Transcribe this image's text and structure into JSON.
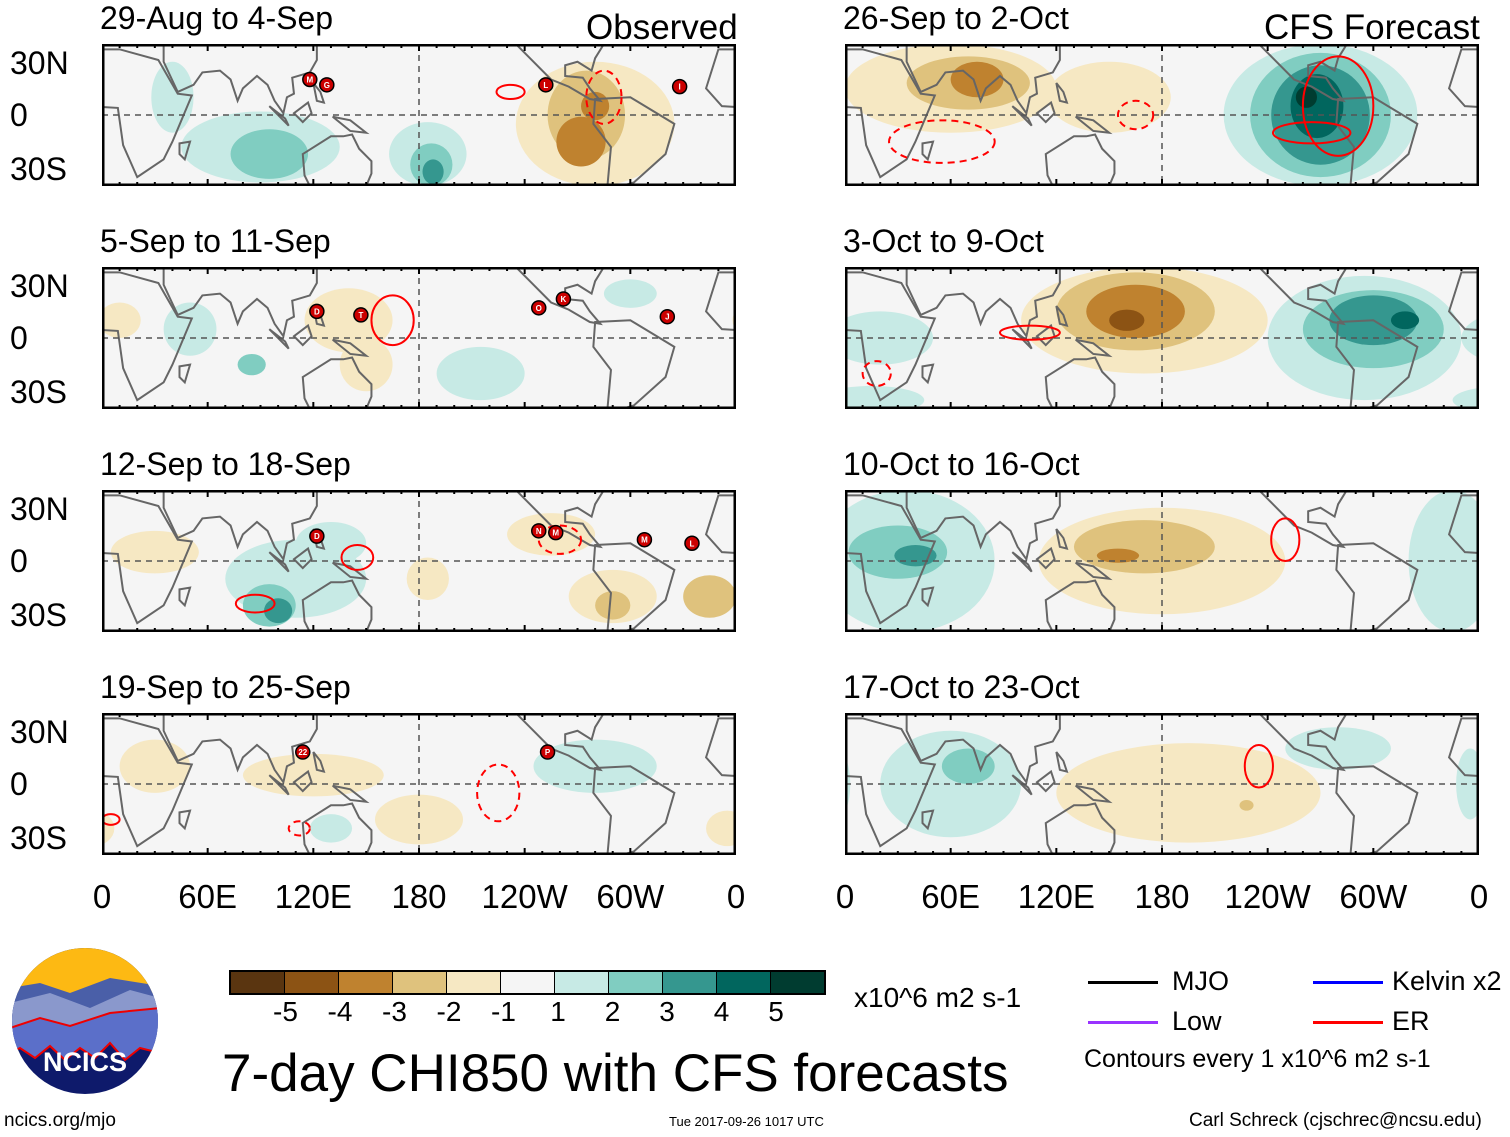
{
  "title": "7-day CHI850 with CFS forecasts",
  "column_labels": {
    "left": "Observed",
    "right": "CFS Forecast"
  },
  "lat_labels": [
    "30N",
    "0",
    "30S"
  ],
  "lon_labels": [
    "0",
    "60E",
    "120E",
    "180",
    "120W",
    "60W",
    "0"
  ],
  "colorbar": {
    "colors": [
      "#5a3510",
      "#8c5314",
      "#bf822f",
      "#dfc27d",
      "#f6e8c3",
      "#f5f5f5",
      "#c7eae5",
      "#80cdc1",
      "#35978f",
      "#01665e",
      "#003c30"
    ],
    "ticks": [
      "-5",
      "-4",
      "-3",
      "-2",
      "-1",
      "1",
      "2",
      "3",
      "4",
      "5"
    ],
    "units": "x10^6 m2 s-1"
  },
  "legend": {
    "items": [
      {
        "label": "MJO",
        "color": "#000000"
      },
      {
        "label": "Kelvin x2",
        "color": "#0000ff"
      },
      {
        "label": "Low",
        "color": "#9933ff"
      },
      {
        "label": "ER",
        "color": "#ff0000"
      }
    ],
    "note": "Contours every 1 x10^6 m2 s-1"
  },
  "logo": {
    "text": "NCICS"
  },
  "footer": {
    "url": "ncics.org/mjo",
    "timestamp": "Tue 2017-09-26 1017 UTC",
    "author": "Carl Schreck (cjschrec@ncsu.edu)"
  },
  "panels": [
    {
      "title": "29-Aug to 4-Sep",
      "column": "left",
      "row": 0,
      "anomalies": [
        {
          "lon": 90,
          "lat": -18,
          "rx": 45,
          "ry": 20,
          "level": 1
        },
        {
          "lon": 95,
          "lat": -22,
          "rx": 22,
          "ry": 14,
          "level": 2
        },
        {
          "lon": 40,
          "lat": 10,
          "rx": 12,
          "ry": 20,
          "level": 1
        },
        {
          "lon": 185,
          "lat": -22,
          "rx": 22,
          "ry": 18,
          "level": 1
        },
        {
          "lon": 187,
          "lat": -28,
          "rx": 12,
          "ry": 12,
          "level": 2
        },
        {
          "lon": 188,
          "lat": -32,
          "rx": 6,
          "ry": 7,
          "level": 3
        },
        {
          "lon": 280,
          "lat": -5,
          "rx": 45,
          "ry": 35,
          "level": -1
        },
        {
          "lon": 275,
          "lat": 0,
          "rx": 22,
          "ry": 25,
          "level": -2
        },
        {
          "lon": 272,
          "lat": -15,
          "rx": 14,
          "ry": 14,
          "level": -3
        },
        {
          "lon": 280,
          "lat": 5,
          "rx": 8,
          "ry": 8,
          "level": -3
        }
      ],
      "contours": [
        {
          "lon": 232,
          "lat": 13,
          "rx": 8,
          "ry": 4,
          "dashed": false
        },
        {
          "lon": 285,
          "lat": 10,
          "rx": 10,
          "ry": 15,
          "dashed": true
        }
      ],
      "storms": [
        {
          "lon": 118,
          "lat": 20,
          "label": "M"
        },
        {
          "lon": 122,
          "lat": 17,
          "label": "G"
        },
        {
          "lon": 252,
          "lat": 17,
          "label": "L"
        },
        {
          "lon": 328,
          "lat": 16,
          "label": "I"
        }
      ]
    },
    {
      "title": "5-Sep to 11-Sep",
      "column": "left",
      "row": 1,
      "anomalies": [
        {
          "lon": 50,
          "lat": 5,
          "rx": 15,
          "ry": 15,
          "level": 1
        },
        {
          "lon": 140,
          "lat": 10,
          "rx": 25,
          "ry": 18,
          "level": -1
        },
        {
          "lon": 150,
          "lat": -15,
          "rx": 15,
          "ry": 15,
          "level": -1
        },
        {
          "lon": 215,
          "lat": -20,
          "rx": 25,
          "ry": 15,
          "level": 1
        },
        {
          "lon": 85,
          "lat": -15,
          "rx": 8,
          "ry": 6,
          "level": 2
        },
        {
          "lon": 10,
          "lat": 10,
          "rx": 12,
          "ry": 10,
          "level": -1
        },
        {
          "lon": 300,
          "lat": 25,
          "rx": 15,
          "ry": 8,
          "level": 1
        }
      ],
      "contours": [
        {
          "lon": 165,
          "lat": 10,
          "rx": 12,
          "ry": 14,
          "dashed": false
        }
      ],
      "storms": [
        {
          "lon": 122,
          "lat": 15,
          "label": "D"
        },
        {
          "lon": 147,
          "lat": 13,
          "label": "T"
        },
        {
          "lon": 248,
          "lat": 17,
          "label": "O"
        },
        {
          "lon": 262,
          "lat": 22,
          "label": "K"
        },
        {
          "lon": 321,
          "lat": 12,
          "label": "J"
        }
      ]
    },
    {
      "title": "12-Sep to 18-Sep",
      "column": "left",
      "row": 2,
      "anomalies": [
        {
          "lon": 110,
          "lat": -10,
          "rx": 40,
          "ry": 22,
          "level": 1
        },
        {
          "lon": 95,
          "lat": -25,
          "rx": 15,
          "ry": 12,
          "level": 2
        },
        {
          "lon": 100,
          "lat": -28,
          "rx": 8,
          "ry": 7,
          "level": 3
        },
        {
          "lon": 130,
          "lat": 10,
          "rx": 20,
          "ry": 12,
          "level": 1
        },
        {
          "lon": 255,
          "lat": 15,
          "rx": 25,
          "ry": 12,
          "level": -1
        },
        {
          "lon": 185,
          "lat": -10,
          "rx": 12,
          "ry": 12,
          "level": -1
        },
        {
          "lon": 290,
          "lat": -20,
          "rx": 25,
          "ry": 15,
          "level": -1
        },
        {
          "lon": 290,
          "lat": -25,
          "rx": 10,
          "ry": 8,
          "level": -2
        },
        {
          "lon": 345,
          "lat": -20,
          "rx": 15,
          "ry": 12,
          "level": -2
        },
        {
          "lon": 30,
          "lat": 5,
          "rx": 25,
          "ry": 12,
          "level": -1
        }
      ],
      "contours": [
        {
          "lon": 87,
          "lat": -24,
          "rx": 11,
          "ry": 5,
          "dashed": false
        },
        {
          "lon": 145,
          "lat": 2,
          "rx": 9,
          "ry": 7,
          "dashed": false
        },
        {
          "lon": 260,
          "lat": 12,
          "rx": 12,
          "ry": 8,
          "dashed": true
        }
      ],
      "storms": [
        {
          "lon": 122,
          "lat": 14,
          "label": "D"
        },
        {
          "lon": 248,
          "lat": 17,
          "label": "N"
        },
        {
          "lon": 255,
          "lat": 16,
          "label": "M"
        },
        {
          "lon": 308,
          "lat": 12,
          "label": "M"
        },
        {
          "lon": 335,
          "lat": 10,
          "label": "L"
        }
      ]
    },
    {
      "title": "19-Sep to 25-Sep",
      "column": "left",
      "row": 3,
      "anomalies": [
        {
          "lon": 30,
          "lat": 10,
          "rx": 20,
          "ry": 15,
          "level": -1
        },
        {
          "lon": 120,
          "lat": 5,
          "rx": 40,
          "ry": 12,
          "level": -1
        },
        {
          "lon": 180,
          "lat": -20,
          "rx": 25,
          "ry": 14,
          "level": -1
        },
        {
          "lon": 280,
          "lat": 10,
          "rx": 35,
          "ry": 15,
          "level": 1
        },
        {
          "lon": 130,
          "lat": -25,
          "rx": 12,
          "ry": 8,
          "level": 1
        },
        {
          "lon": 355,
          "lat": -25,
          "rx": 12,
          "ry": 10,
          "level": -1
        }
      ],
      "contours": [
        {
          "lon": 5,
          "lat": -20,
          "rx": 5,
          "ry": 3,
          "dashed": false
        },
        {
          "lon": 225,
          "lat": -5,
          "rx": 12,
          "ry": 16,
          "dashed": true
        },
        {
          "lon": 112,
          "lat": -25,
          "rx": 6,
          "ry": 4,
          "dashed": true
        }
      ],
      "storms": [
        {
          "lon": 114,
          "lat": 18,
          "label": "22"
        },
        {
          "lon": 253,
          "lat": 18,
          "label": "P"
        }
      ]
    },
    {
      "title": "26-Sep to 2-Oct",
      "column": "right",
      "row": 0,
      "anomalies": [
        {
          "lon": 60,
          "lat": 15,
          "rx": 60,
          "ry": 25,
          "level": -1
        },
        {
          "lon": 70,
          "lat": 18,
          "rx": 35,
          "ry": 15,
          "level": -2
        },
        {
          "lon": 75,
          "lat": 20,
          "rx": 15,
          "ry": 10,
          "level": -3
        },
        {
          "lon": 150,
          "lat": 10,
          "rx": 35,
          "ry": 20,
          "level": -1
        },
        {
          "lon": 270,
          "lat": 0,
          "rx": 55,
          "ry": 40,
          "level": 1
        },
        {
          "lon": 270,
          "lat": 0,
          "rx": 40,
          "ry": 35,
          "level": 2
        },
        {
          "lon": 270,
          "lat": 0,
          "rx": 28,
          "ry": 28,
          "level": 3
        },
        {
          "lon": 268,
          "lat": 5,
          "rx": 15,
          "ry": 18,
          "level": 4
        },
        {
          "lon": 262,
          "lat": 10,
          "rx": 6,
          "ry": 6,
          "level": 5
        }
      ],
      "contours": [
        {
          "lon": 55,
          "lat": -15,
          "rx": 30,
          "ry": 12,
          "dashed": true
        },
        {
          "lon": 165,
          "lat": 0,
          "rx": 10,
          "ry": 8,
          "dashed": true
        },
        {
          "lon": 280,
          "lat": 5,
          "rx": 20,
          "ry": 28,
          "dashed": false
        },
        {
          "lon": 265,
          "lat": -10,
          "rx": 22,
          "ry": 6,
          "dashed": false
        }
      ],
      "storms": []
    },
    {
      "title": "3-Oct to 9-Oct",
      "column": "right",
      "row": 1,
      "anomalies": [
        {
          "lon": 170,
          "lat": 10,
          "rx": 70,
          "ry": 30,
          "level": -1
        },
        {
          "lon": 165,
          "lat": 15,
          "rx": 45,
          "ry": 22,
          "level": -2
        },
        {
          "lon": 165,
          "lat": 15,
          "rx": 28,
          "ry": 15,
          "level": -3
        },
        {
          "lon": 160,
          "lat": 10,
          "rx": 10,
          "ry": 6,
          "level": -4
        },
        {
          "lon": 295,
          "lat": 0,
          "rx": 55,
          "ry": 35,
          "level": 1
        },
        {
          "lon": 300,
          "lat": 5,
          "rx": 40,
          "ry": 22,
          "level": 2
        },
        {
          "lon": 300,
          "lat": 10,
          "rx": 25,
          "ry": 14,
          "level": 3
        },
        {
          "lon": 318,
          "lat": 10,
          "rx": 8,
          "ry": 5,
          "level": 4
        },
        {
          "lon": 20,
          "lat": 0,
          "rx": 30,
          "ry": 15,
          "level": 1
        },
        {
          "lon": 15,
          "lat": -35,
          "rx": 30,
          "ry": 8,
          "level": 1
        }
      ],
      "contours": [
        {
          "lon": 105,
          "lat": 3,
          "rx": 17,
          "ry": 4,
          "dashed": false
        },
        {
          "lon": 18,
          "lat": -20,
          "rx": 8,
          "ry": 7,
          "dashed": true
        }
      ],
      "storms": []
    },
    {
      "title": "10-Oct to 16-Oct",
      "column": "right",
      "row": 2,
      "anomalies": [
        {
          "lon": 35,
          "lat": 0,
          "rx": 50,
          "ry": 40,
          "level": 1
        },
        {
          "lon": 30,
          "lat": 5,
          "rx": 28,
          "ry": 15,
          "level": 2
        },
        {
          "lon": 40,
          "lat": 3,
          "rx": 12,
          "ry": 6,
          "level": 3
        },
        {
          "lon": 345,
          "lat": 0,
          "rx": 25,
          "ry": 40,
          "level": 1
        },
        {
          "lon": 180,
          "lat": 0,
          "rx": 70,
          "ry": 30,
          "level": -1
        },
        {
          "lon": 170,
          "lat": 8,
          "rx": 40,
          "ry": 15,
          "level": -2
        },
        {
          "lon": 155,
          "lat": 3,
          "rx": 12,
          "ry": 4,
          "level": -3
        }
      ],
      "contours": [
        {
          "lon": 250,
          "lat": 12,
          "rx": 8,
          "ry": 12,
          "dashed": false
        }
      ],
      "storms": []
    },
    {
      "title": "17-Oct to 23-Oct",
      "column": "right",
      "row": 3,
      "anomalies": [
        {
          "lon": 60,
          "lat": 0,
          "rx": 40,
          "ry": 30,
          "level": 1
        },
        {
          "lon": 70,
          "lat": 10,
          "rx": 15,
          "ry": 10,
          "level": 2
        },
        {
          "lon": 195,
          "lat": -5,
          "rx": 75,
          "ry": 28,
          "level": -1
        },
        {
          "lon": 228,
          "lat": -12,
          "rx": 4,
          "ry": 3,
          "level": -2
        },
        {
          "lon": 280,
          "lat": 20,
          "rx": 30,
          "ry": 12,
          "level": 1
        },
        {
          "lon": 355,
          "lat": 0,
          "rx": 8,
          "ry": 20,
          "level": 1
        }
      ],
      "contours": [
        {
          "lon": 235,
          "lat": 10,
          "rx": 8,
          "ry": 12,
          "dashed": false
        }
      ],
      "storms": []
    }
  ]
}
